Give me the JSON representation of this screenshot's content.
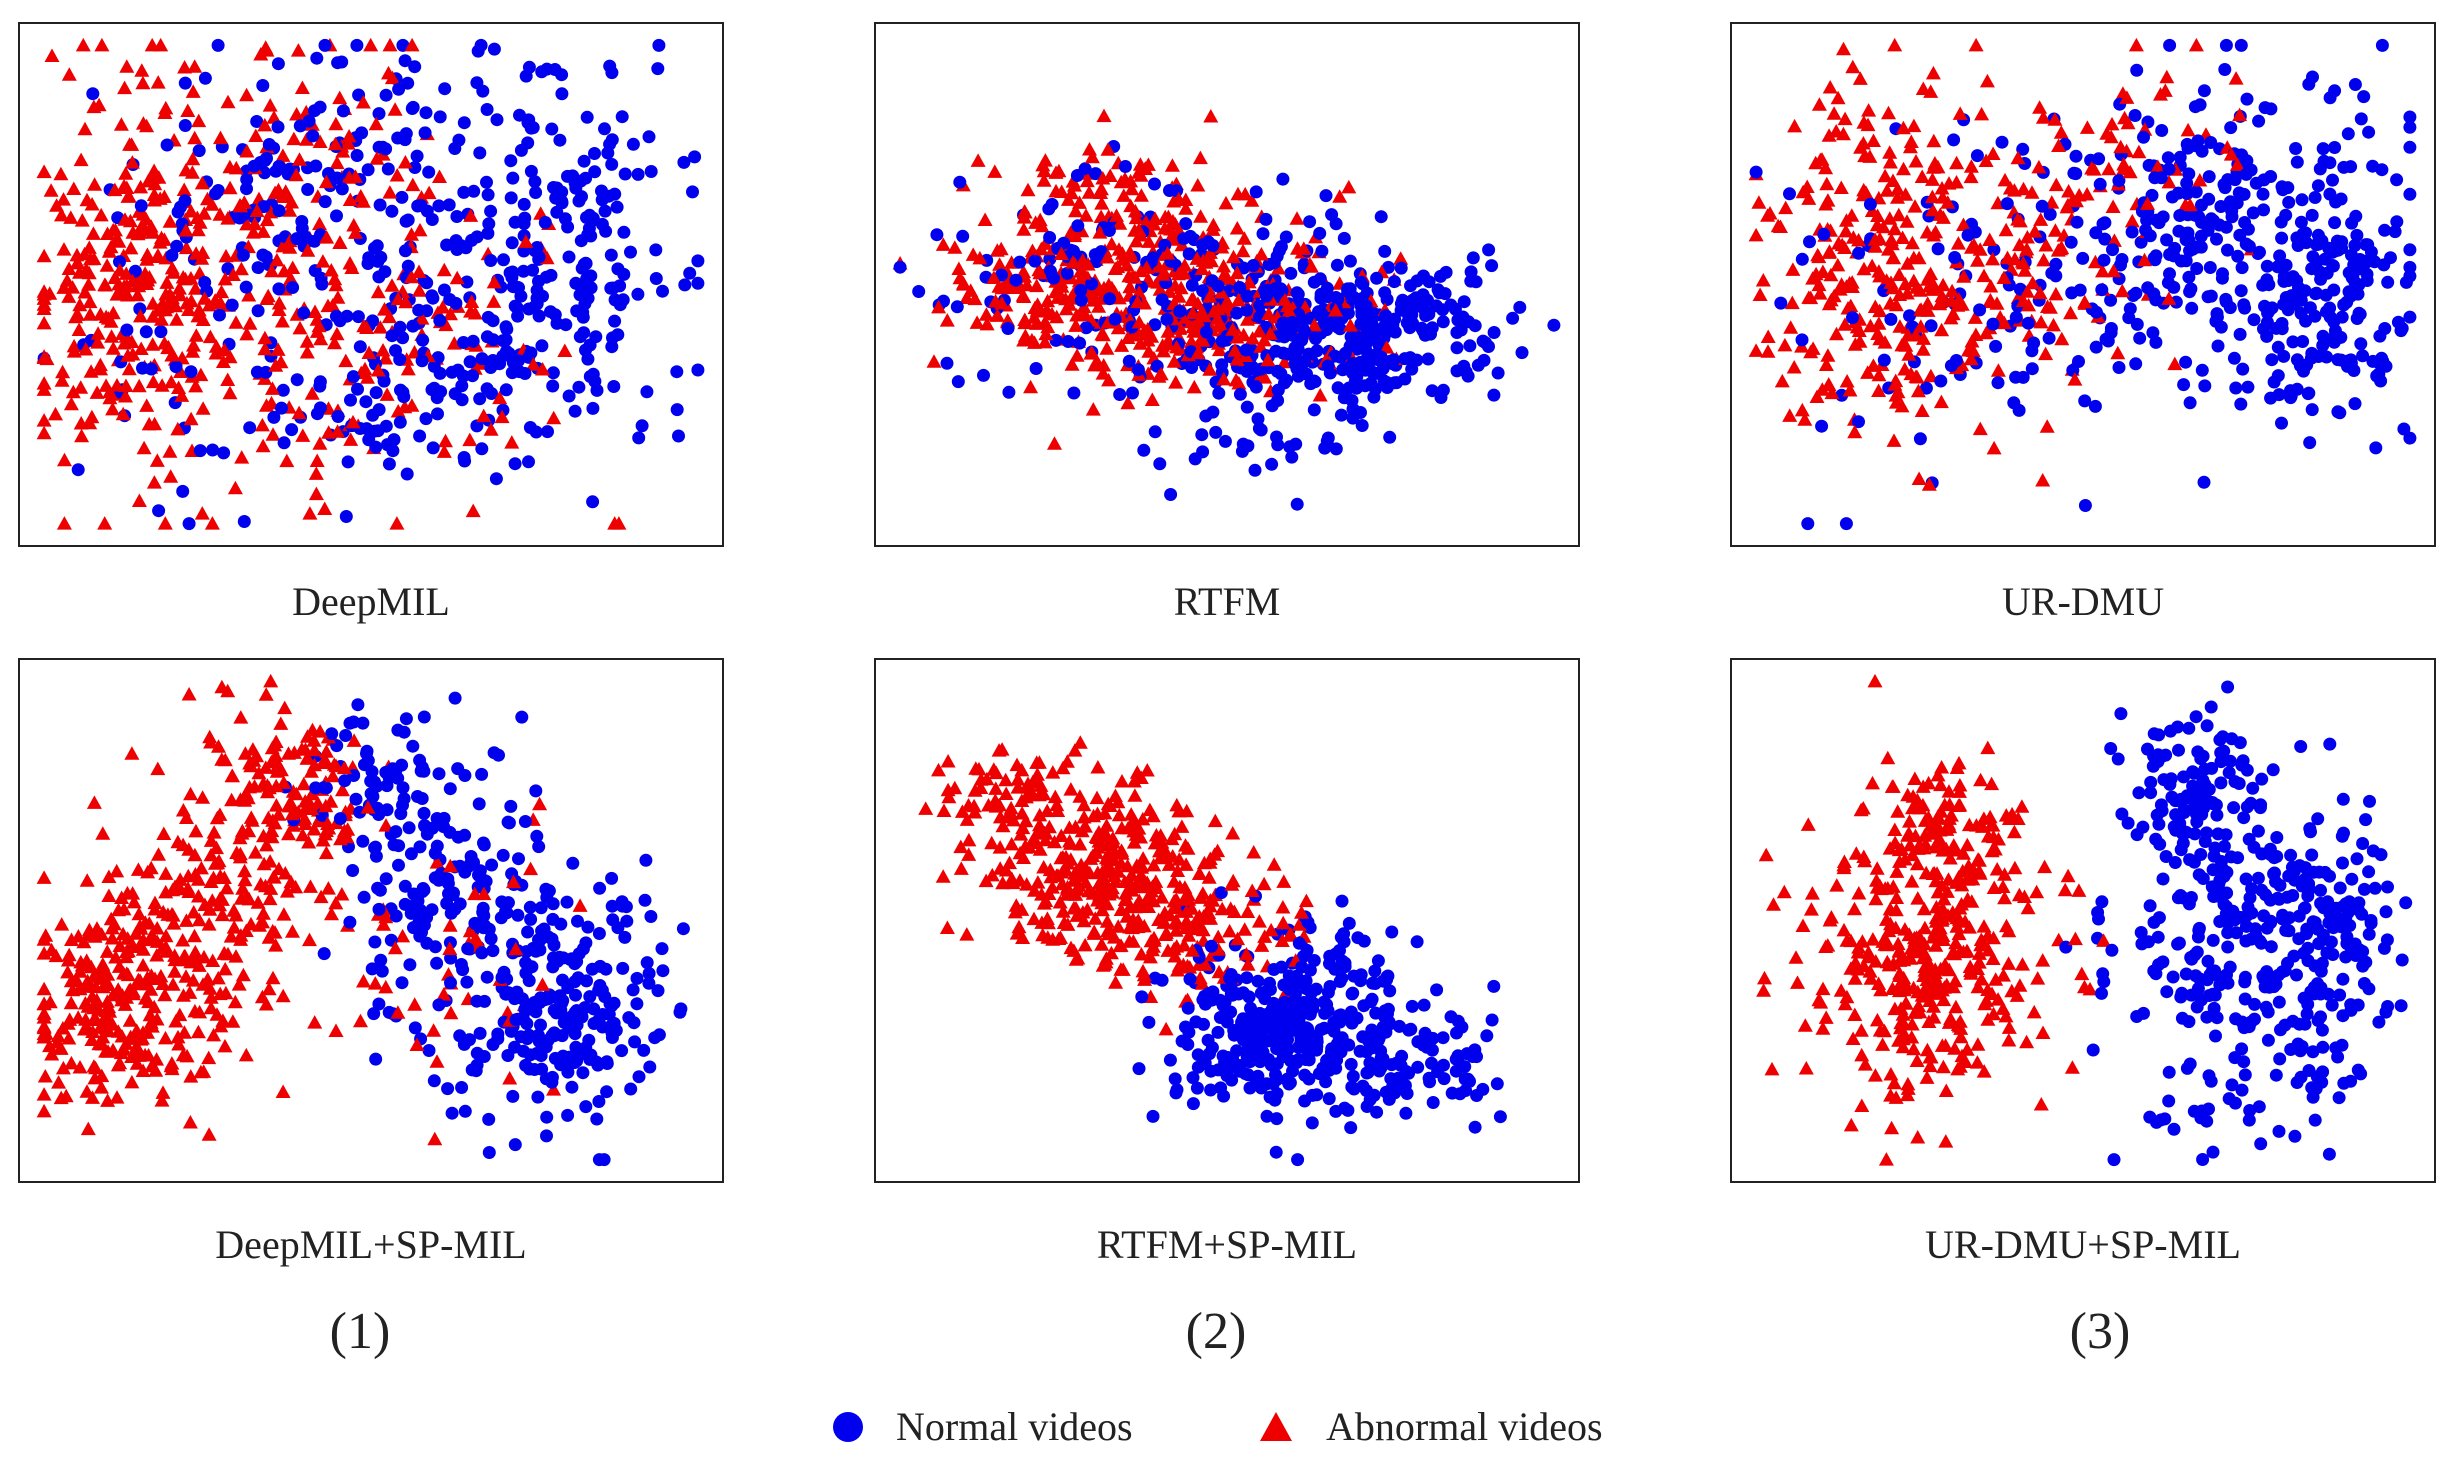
{
  "colors": {
    "normal": "#0000ee",
    "abnormal": "#ee0000",
    "frame": "#222222"
  },
  "legend": {
    "normal_label": "Normal videos",
    "abnormal_label": "Abnormal videos",
    "normal_marker": "circle",
    "abnormal_marker": "triangle"
  },
  "groups": [
    {
      "label": "(1)"
    },
    {
      "label": "(2)"
    },
    {
      "label": "(3)"
    }
  ],
  "chart_data": [
    {
      "type": "scatter",
      "title": "DeepMIL",
      "grid": false,
      "xlim": [
        0,
        1
      ],
      "ylim": [
        0,
        1
      ],
      "series": [
        {
          "name": "Normal videos",
          "marker": "circle",
          "clusters": [
            {
              "cx": 0.78,
              "cy": 0.55,
              "sx": 0.09,
              "sy": 0.19,
              "n": 220
            },
            {
              "cx": 0.47,
              "cy": 0.7,
              "sx": 0.13,
              "sy": 0.15,
              "n": 140
            },
            {
              "cx": 0.55,
              "cy": 0.3,
              "sx": 0.11,
              "sy": 0.12,
              "n": 110
            },
            {
              "cx": 0.3,
              "cy": 0.45,
              "sx": 0.15,
              "sy": 0.22,
              "n": 80
            }
          ]
        },
        {
          "name": "Abnormal videos",
          "marker": "triangle",
          "clusters": [
            {
              "cx": 0.15,
              "cy": 0.5,
              "sx": 0.08,
              "sy": 0.2,
              "n": 260
            },
            {
              "cx": 0.32,
              "cy": 0.55,
              "sx": 0.1,
              "sy": 0.2,
              "n": 130
            },
            {
              "cx": 0.58,
              "cy": 0.35,
              "sx": 0.13,
              "sy": 0.18,
              "n": 110
            },
            {
              "cx": 0.45,
              "cy": 0.75,
              "sx": 0.1,
              "sy": 0.12,
              "n": 60
            }
          ]
        }
      ]
    },
    {
      "type": "scatter",
      "title": "RTFM",
      "grid": false,
      "xlim": [
        0,
        1
      ],
      "ylim": [
        0,
        1
      ],
      "series": [
        {
          "name": "Normal videos",
          "marker": "circle",
          "clusters": [
            {
              "cx": 0.68,
              "cy": 0.41,
              "sx": 0.12,
              "sy": 0.08,
              "n": 360
            },
            {
              "cx": 0.35,
              "cy": 0.52,
              "sx": 0.14,
              "sy": 0.1,
              "n": 150
            },
            {
              "cx": 0.6,
              "cy": 0.18,
              "sx": 0.12,
              "sy": 0.06,
              "n": 40
            }
          ]
        },
        {
          "name": "Abnormal videos",
          "marker": "triangle",
          "clusters": [
            {
              "cx": 0.45,
              "cy": 0.46,
              "sx": 0.13,
              "sy": 0.08,
              "n": 320
            },
            {
              "cx": 0.32,
              "cy": 0.65,
              "sx": 0.09,
              "sy": 0.07,
              "n": 110
            },
            {
              "cx": 0.2,
              "cy": 0.48,
              "sx": 0.06,
              "sy": 0.05,
              "n": 80
            }
          ]
        }
      ]
    },
    {
      "type": "scatter",
      "title": "UR-DMU",
      "grid": false,
      "xlim": [
        0,
        1
      ],
      "ylim": [
        0,
        1
      ],
      "series": [
        {
          "name": "Normal videos",
          "marker": "circle",
          "clusters": [
            {
              "cx": 0.7,
              "cy": 0.6,
              "sx": 0.14,
              "sy": 0.16,
              "n": 320
            },
            {
              "cx": 0.86,
              "cy": 0.45,
              "sx": 0.06,
              "sy": 0.13,
              "n": 120
            },
            {
              "cx": 0.32,
              "cy": 0.5,
              "sx": 0.13,
              "sy": 0.2,
              "n": 80
            }
          ]
        },
        {
          "name": "Abnormal videos",
          "marker": "triangle",
          "clusters": [
            {
              "cx": 0.2,
              "cy": 0.55,
              "sx": 0.09,
              "sy": 0.18,
              "n": 260
            },
            {
              "cx": 0.4,
              "cy": 0.55,
              "sx": 0.08,
              "sy": 0.15,
              "n": 90
            },
            {
              "cx": 0.55,
              "cy": 0.72,
              "sx": 0.12,
              "sy": 0.12,
              "n": 70
            }
          ]
        }
      ]
    },
    {
      "type": "scatter",
      "title": "DeepMIL+SP-MIL",
      "grid": false,
      "xlim": [
        0,
        1
      ],
      "ylim": [
        0,
        1
      ],
      "series": [
        {
          "name": "Normal videos",
          "marker": "circle",
          "clusters": [
            {
              "cx": 0.78,
              "cy": 0.35,
              "sx": 0.08,
              "sy": 0.12,
              "n": 260
            },
            {
              "cx": 0.6,
              "cy": 0.6,
              "sx": 0.07,
              "sy": 0.13,
              "n": 140
            },
            {
              "cx": 0.5,
              "cy": 0.8,
              "sx": 0.05,
              "sy": 0.07,
              "n": 50
            }
          ]
        },
        {
          "name": "Abnormal videos",
          "marker": "triangle",
          "clusters": [
            {
              "cx": 0.13,
              "cy": 0.33,
              "sx": 0.07,
              "sy": 0.11,
              "n": 260
            },
            {
              "cx": 0.27,
              "cy": 0.55,
              "sx": 0.07,
              "sy": 0.13,
              "n": 160
            },
            {
              "cx": 0.38,
              "cy": 0.77,
              "sx": 0.06,
              "sy": 0.09,
              "n": 120
            },
            {
              "cx": 0.62,
              "cy": 0.45,
              "sx": 0.1,
              "sy": 0.12,
              "n": 50
            }
          ]
        }
      ]
    },
    {
      "type": "scatter",
      "title": "RTFM+SP-MIL",
      "grid": false,
      "xlim": [
        0,
        1
      ],
      "ylim": [
        0,
        1
      ],
      "series": [
        {
          "name": "Normal videos",
          "marker": "circle",
          "clusters": [
            {
              "cx": 0.6,
              "cy": 0.29,
              "sx": 0.09,
              "sy": 0.09,
              "n": 360
            },
            {
              "cx": 0.78,
              "cy": 0.2,
              "sx": 0.07,
              "sy": 0.06,
              "n": 80
            }
          ]
        },
        {
          "name": "Abnormal videos",
          "marker": "triangle",
          "clusters": [
            {
              "cx": 0.3,
              "cy": 0.62,
              "sx": 0.08,
              "sy": 0.1,
              "n": 250
            },
            {
              "cx": 0.43,
              "cy": 0.5,
              "sx": 0.08,
              "sy": 0.08,
              "n": 180
            },
            {
              "cx": 0.16,
              "cy": 0.75,
              "sx": 0.05,
              "sy": 0.07,
              "n": 60
            }
          ]
        }
      ]
    },
    {
      "type": "scatter",
      "title": "UR-DMU+SP-MIL",
      "grid": false,
      "xlim": [
        0,
        1
      ],
      "ylim": [
        0,
        1
      ],
      "series": [
        {
          "name": "Normal videos",
          "marker": "circle",
          "clusters": [
            {
              "cx": 0.74,
              "cy": 0.42,
              "sx": 0.09,
              "sy": 0.17,
              "n": 300
            },
            {
              "cx": 0.65,
              "cy": 0.78,
              "sx": 0.05,
              "sy": 0.09,
              "n": 100
            },
            {
              "cx": 0.88,
              "cy": 0.5,
              "sx": 0.05,
              "sy": 0.13,
              "n": 90
            }
          ]
        },
        {
          "name": "Abnormal videos",
          "marker": "triangle",
          "clusters": [
            {
              "cx": 0.27,
              "cy": 0.45,
              "sx": 0.09,
              "sy": 0.15,
              "n": 380
            },
            {
              "cx": 0.32,
              "cy": 0.7,
              "sx": 0.05,
              "sy": 0.06,
              "n": 60
            }
          ]
        }
      ]
    }
  ]
}
